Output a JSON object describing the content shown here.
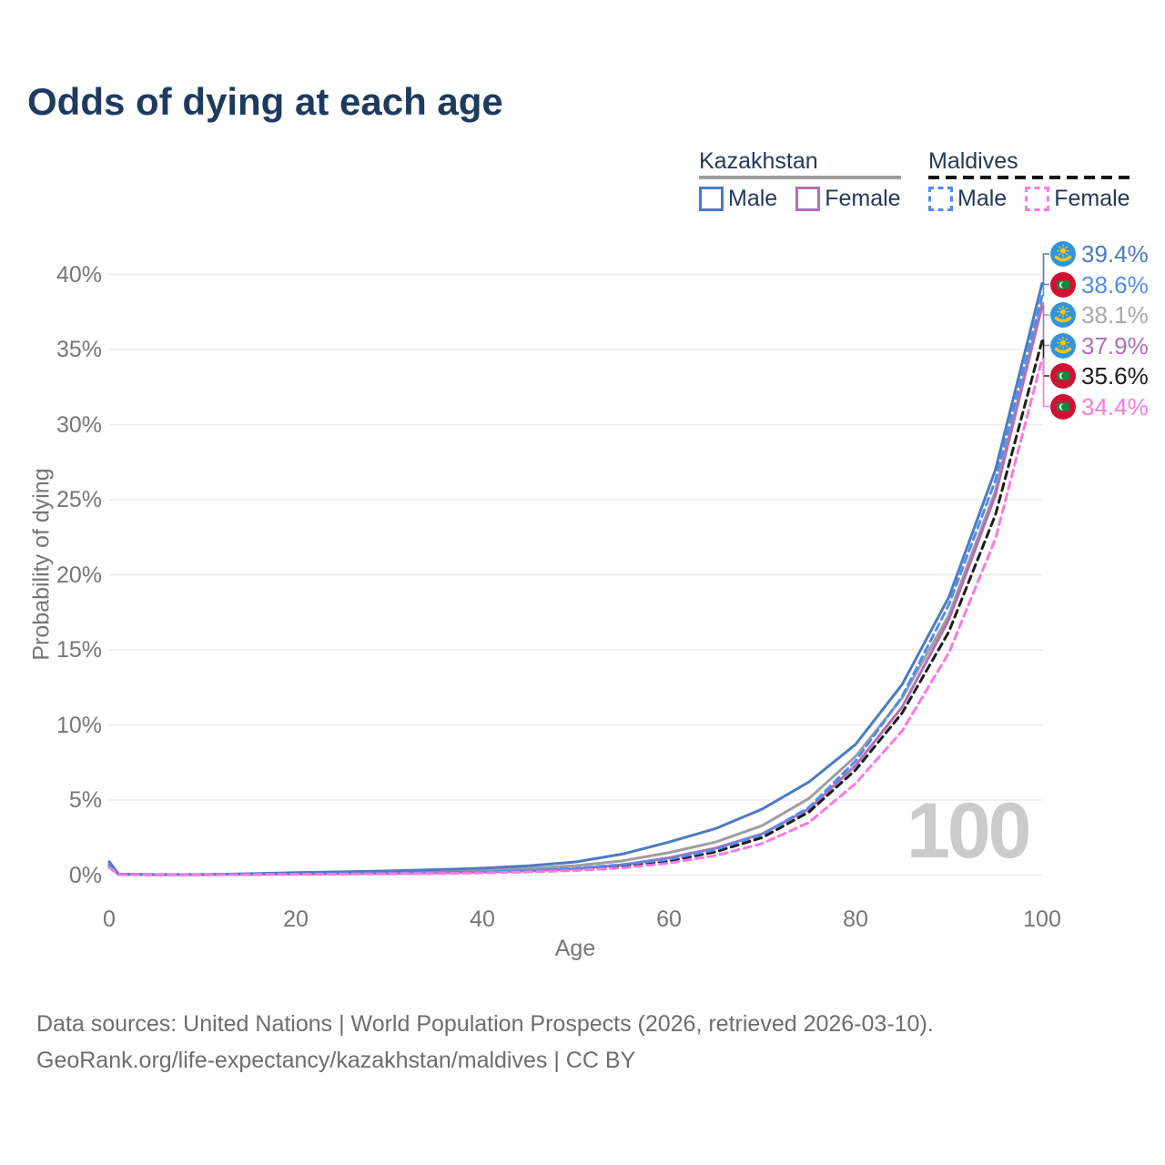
{
  "title": "Odds of dying at each age",
  "watermark": "100",
  "legend": {
    "groups": [
      {
        "name": "Kazakhstan",
        "line_style": "solid",
        "underline_color": "#9e9e9e",
        "items": [
          {
            "label": "Male",
            "color": "#4a7bc4"
          },
          {
            "label": "Female",
            "color": "#b06fb6"
          }
        ]
      },
      {
        "name": "Maldives",
        "line_style": "dashed",
        "underline_color": "#161616",
        "items": [
          {
            "label": "Male",
            "color": "#4f8df2"
          },
          {
            "label": "Female",
            "color": "#fb78e2"
          }
        ]
      }
    ]
  },
  "footer": {
    "line1": "Data sources: United Nations | World Population Prospects (2026, retrieved 2026-03-10).",
    "line2": "GeoRank.org/life-expectancy/kazakhstan/maldives | CC BY"
  },
  "chart_data": {
    "type": "line",
    "title": "Odds of dying at each age",
    "xlabel": "Age",
    "ylabel": "Probability of dying",
    "xlim": [
      0,
      100
    ],
    "ylim": [
      0,
      40
    ],
    "grid": "horizontal",
    "legend_position": "top-right",
    "x_ticks": [
      0,
      20,
      40,
      60,
      80,
      100
    ],
    "y_ticks": [
      0,
      5,
      10,
      15,
      20,
      25,
      30,
      35,
      40
    ],
    "y_tick_suffix": "%",
    "ages": [
      0,
      1,
      5,
      10,
      15,
      20,
      25,
      30,
      35,
      40,
      45,
      50,
      55,
      60,
      65,
      70,
      75,
      80,
      85,
      90,
      95,
      100
    ],
    "series": [
      {
        "name": "Kazakhstan",
        "sex": "All",
        "color": "#9e9e9e",
        "label_color": "#a9a9a9",
        "dashed": false,
        "flag": "kazakhstan",
        "end_label": "38.1%",
        "values": [
          0.8,
          0.05,
          0.03,
          0.03,
          0.07,
          0.12,
          0.15,
          0.19,
          0.24,
          0.32,
          0.44,
          0.63,
          0.95,
          1.5,
          2.2,
          3.3,
          5.1,
          7.9,
          11.8,
          17.3,
          25.6,
          38.1
        ]
      },
      {
        "name": "Kazakhstan Female",
        "sex": "Female",
        "color": "#b06fb6",
        "label_color": "#b06fb6",
        "dashed": false,
        "flag": "kazakhstan",
        "end_label": "37.9%",
        "values": [
          0.7,
          0.05,
          0.03,
          0.03,
          0.05,
          0.07,
          0.09,
          0.11,
          0.15,
          0.2,
          0.28,
          0.42,
          0.68,
          1.15,
          1.8,
          2.75,
          4.4,
          7.3,
          11.2,
          17.0,
          25.3,
          37.9
        ]
      },
      {
        "name": "Kazakhstan Male",
        "sex": "Male",
        "color": "#4a7bc4",
        "label_color": "#4a7bc4",
        "dashed": false,
        "flag": "kazakhstan",
        "end_label": "39.4%",
        "values": [
          0.9,
          0.06,
          0.04,
          0.04,
          0.09,
          0.17,
          0.22,
          0.28,
          0.36,
          0.46,
          0.62,
          0.88,
          1.4,
          2.2,
          3.1,
          4.4,
          6.2,
          8.7,
          12.7,
          18.5,
          27.0,
          39.4
        ]
      },
      {
        "name": "Maldives",
        "sex": "All",
        "color": "#1c1c1c",
        "label_color": "#1c1c1c",
        "dashed": true,
        "flag": "maldives",
        "end_label": "35.6%",
        "values": [
          0.55,
          0.04,
          0.02,
          0.02,
          0.04,
          0.07,
          0.09,
          0.11,
          0.14,
          0.19,
          0.27,
          0.4,
          0.62,
          0.95,
          1.55,
          2.5,
          4.2,
          7.0,
          10.8,
          16.2,
          24.0,
          35.6
        ]
      },
      {
        "name": "Maldives Male",
        "sex": "Male",
        "color": "#4f8df2",
        "label_color": "#4f8df2",
        "dashed": true,
        "flag": "maldives",
        "end_label": "38.6%",
        "values": [
          0.6,
          0.04,
          0.02,
          0.03,
          0.05,
          0.08,
          0.1,
          0.13,
          0.16,
          0.21,
          0.3,
          0.45,
          0.7,
          1.05,
          1.7,
          2.7,
          4.5,
          7.6,
          11.9,
          18.0,
          26.3,
          38.6
        ]
      },
      {
        "name": "Maldives Female",
        "sex": "Female",
        "color": "#fb78e2",
        "label_color": "#fb78e2",
        "dashed": true,
        "flag": "maldives",
        "end_label": "34.4%",
        "values": [
          0.5,
          0.03,
          0.02,
          0.02,
          0.03,
          0.05,
          0.07,
          0.09,
          0.11,
          0.15,
          0.21,
          0.31,
          0.48,
          0.8,
          1.3,
          2.1,
          3.5,
          6.1,
          9.6,
          14.8,
          22.4,
          34.4
        ]
      }
    ],
    "flag_colors": {
      "kazakhstan_blue": "#2e96dd",
      "kazakhstan_yellow": "#fec50c",
      "maldives_red": "#d21034",
      "maldives_green": "#0d8a3f"
    }
  }
}
